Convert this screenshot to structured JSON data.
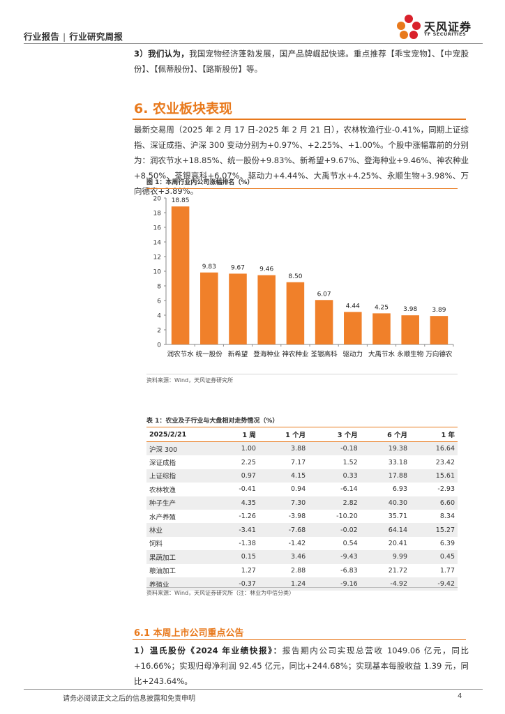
{
  "header": {
    "report_type": "行业报告",
    "separator": "|",
    "report_subtype": "行业研究周报",
    "logo_name_cn": "天风证券",
    "logo_name_en": "TF SECURITIES"
  },
  "intro": {
    "lead": "3）我们认为，",
    "body": "我国宠物经济蓬勃发展，国产品牌崛起快速。重点推荐【乖宝宠物】、【中宠股份】、【佩蒂股份】、【路斯股份】等。"
  },
  "section": {
    "title": "6. 农业板块表现",
    "paragraph": "最新交易周（2025 年 2 月 17 日-2025 年 2 月 21 日），农林牧渔行业-0.41%，同期上证综指、深证成指、沪深 300 变动分别为+0.97%、+2.25%、+1.00%。个股中涨幅靠前的分别为：润农节水+18.85%、统一股份+9.83%、新希望+9.67%、登海种业+9.46%、神农种业+8.50%、荃银高科+6.07%、驱动力+4.44%、大禹节水+4.25%、永顺生物+3.98%、万向德农+3.89%。"
  },
  "figure": {
    "title": "图 1：本周行业内公司涨幅排名（%）",
    "source": "资料来源：Wind，天风证券研究所"
  },
  "chart_data": {
    "type": "bar",
    "title": "本周行业内公司涨幅排名（%）",
    "categories": [
      "润农节水",
      "统一股份",
      "新希望",
      "登海种业",
      "神农种业",
      "荃银高科",
      "驱动力",
      "大禹节水",
      "永顺生物",
      "万向德农"
    ],
    "values": [
      18.85,
      9.83,
      9.67,
      9.46,
      8.5,
      6.07,
      4.44,
      4.25,
      3.98,
      3.89
    ],
    "value_labels": [
      "18.85",
      "9.83",
      "9.67",
      "9.46",
      "8.50",
      "6.07",
      "4.44",
      "4.25",
      "3.98",
      "3.89"
    ],
    "y_ticks": [
      0,
      2,
      4,
      6,
      8,
      10,
      12,
      14,
      16,
      18,
      20
    ],
    "ylim": [
      0,
      20
    ],
    "xlabel": "",
    "ylabel": "",
    "grid": false,
    "bar_color": "#f0802a"
  },
  "table": {
    "title": "表 1：农业及子行业与大盘相对走势情况（%）",
    "headers": [
      "2025/2/21",
      "1 周",
      "1 个月",
      "3 个月",
      "6 个月",
      "1 年"
    ],
    "rows": [
      [
        "沪深 300",
        "1.00",
        "3.88",
        "-0.18",
        "19.38",
        "16.64"
      ],
      [
        "深证成指",
        "2.25",
        "7.17",
        "1.52",
        "33.18",
        "23.42"
      ],
      [
        "上证综指",
        "0.97",
        "4.15",
        "0.33",
        "17.88",
        "15.61"
      ],
      [
        "农林牧渔",
        "-0.41",
        "0.94",
        "-6.14",
        "6.93",
        "-2.93"
      ],
      [
        "种子生产",
        "4.35",
        "7.30",
        "2.82",
        "40.30",
        "6.60"
      ],
      [
        "水产养殖",
        "-1.26",
        "-3.98",
        "-10.20",
        "35.71",
        "8.34"
      ],
      [
        "林业",
        "-3.41",
        "-7.68",
        "-0.02",
        "64.14",
        "15.27"
      ],
      [
        "饲料",
        "-1.38",
        "-1.42",
        "0.54",
        "20.41",
        "6.39"
      ],
      [
        "果蔬加工",
        "0.15",
        "3.46",
        "-9.43",
        "9.99",
        "0.45"
      ],
      [
        "粮油加工",
        "1.27",
        "2.88",
        "-6.83",
        "21.72",
        "1.77"
      ],
      [
        "养殖业",
        "-0.37",
        "1.24",
        "-9.16",
        "-4.92",
        "-9.42"
      ]
    ],
    "source": "资料来源：Wind，天风证券研究所（注：林业为中信分类）"
  },
  "subsection": {
    "title": "6.1 本周上市公司重点公告",
    "lead": "1）温氏股份《2024 年业绩快报》：",
    "body": "报告期内公司实现总营收 1049.06 亿元，同比+16.66%；实现归母净利润 92.45 亿元，同比+244.68%；实现基本每股收益 1.39 元，同比+243.64%。"
  },
  "footer": {
    "disclaimer": "请务必阅读正文之后的信息披露和免责申明",
    "page_number": "4"
  }
}
